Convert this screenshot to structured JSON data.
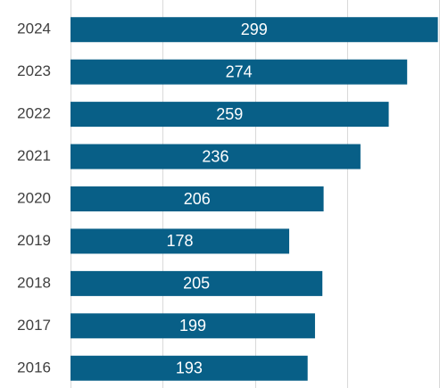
{
  "chart_data": {
    "type": "bar",
    "orientation": "horizontal",
    "categories": [
      "2024",
      "2023",
      "2022",
      "2021",
      "2020",
      "2019",
      "2018",
      "2017",
      "2016"
    ],
    "values": [
      299,
      274,
      259,
      236,
      206,
      178,
      205,
      199,
      193
    ],
    "color": "#085f87",
    "xlim": [
      0,
      300
    ],
    "xticks": [
      0,
      75,
      150,
      225,
      300
    ],
    "grid": true
  }
}
